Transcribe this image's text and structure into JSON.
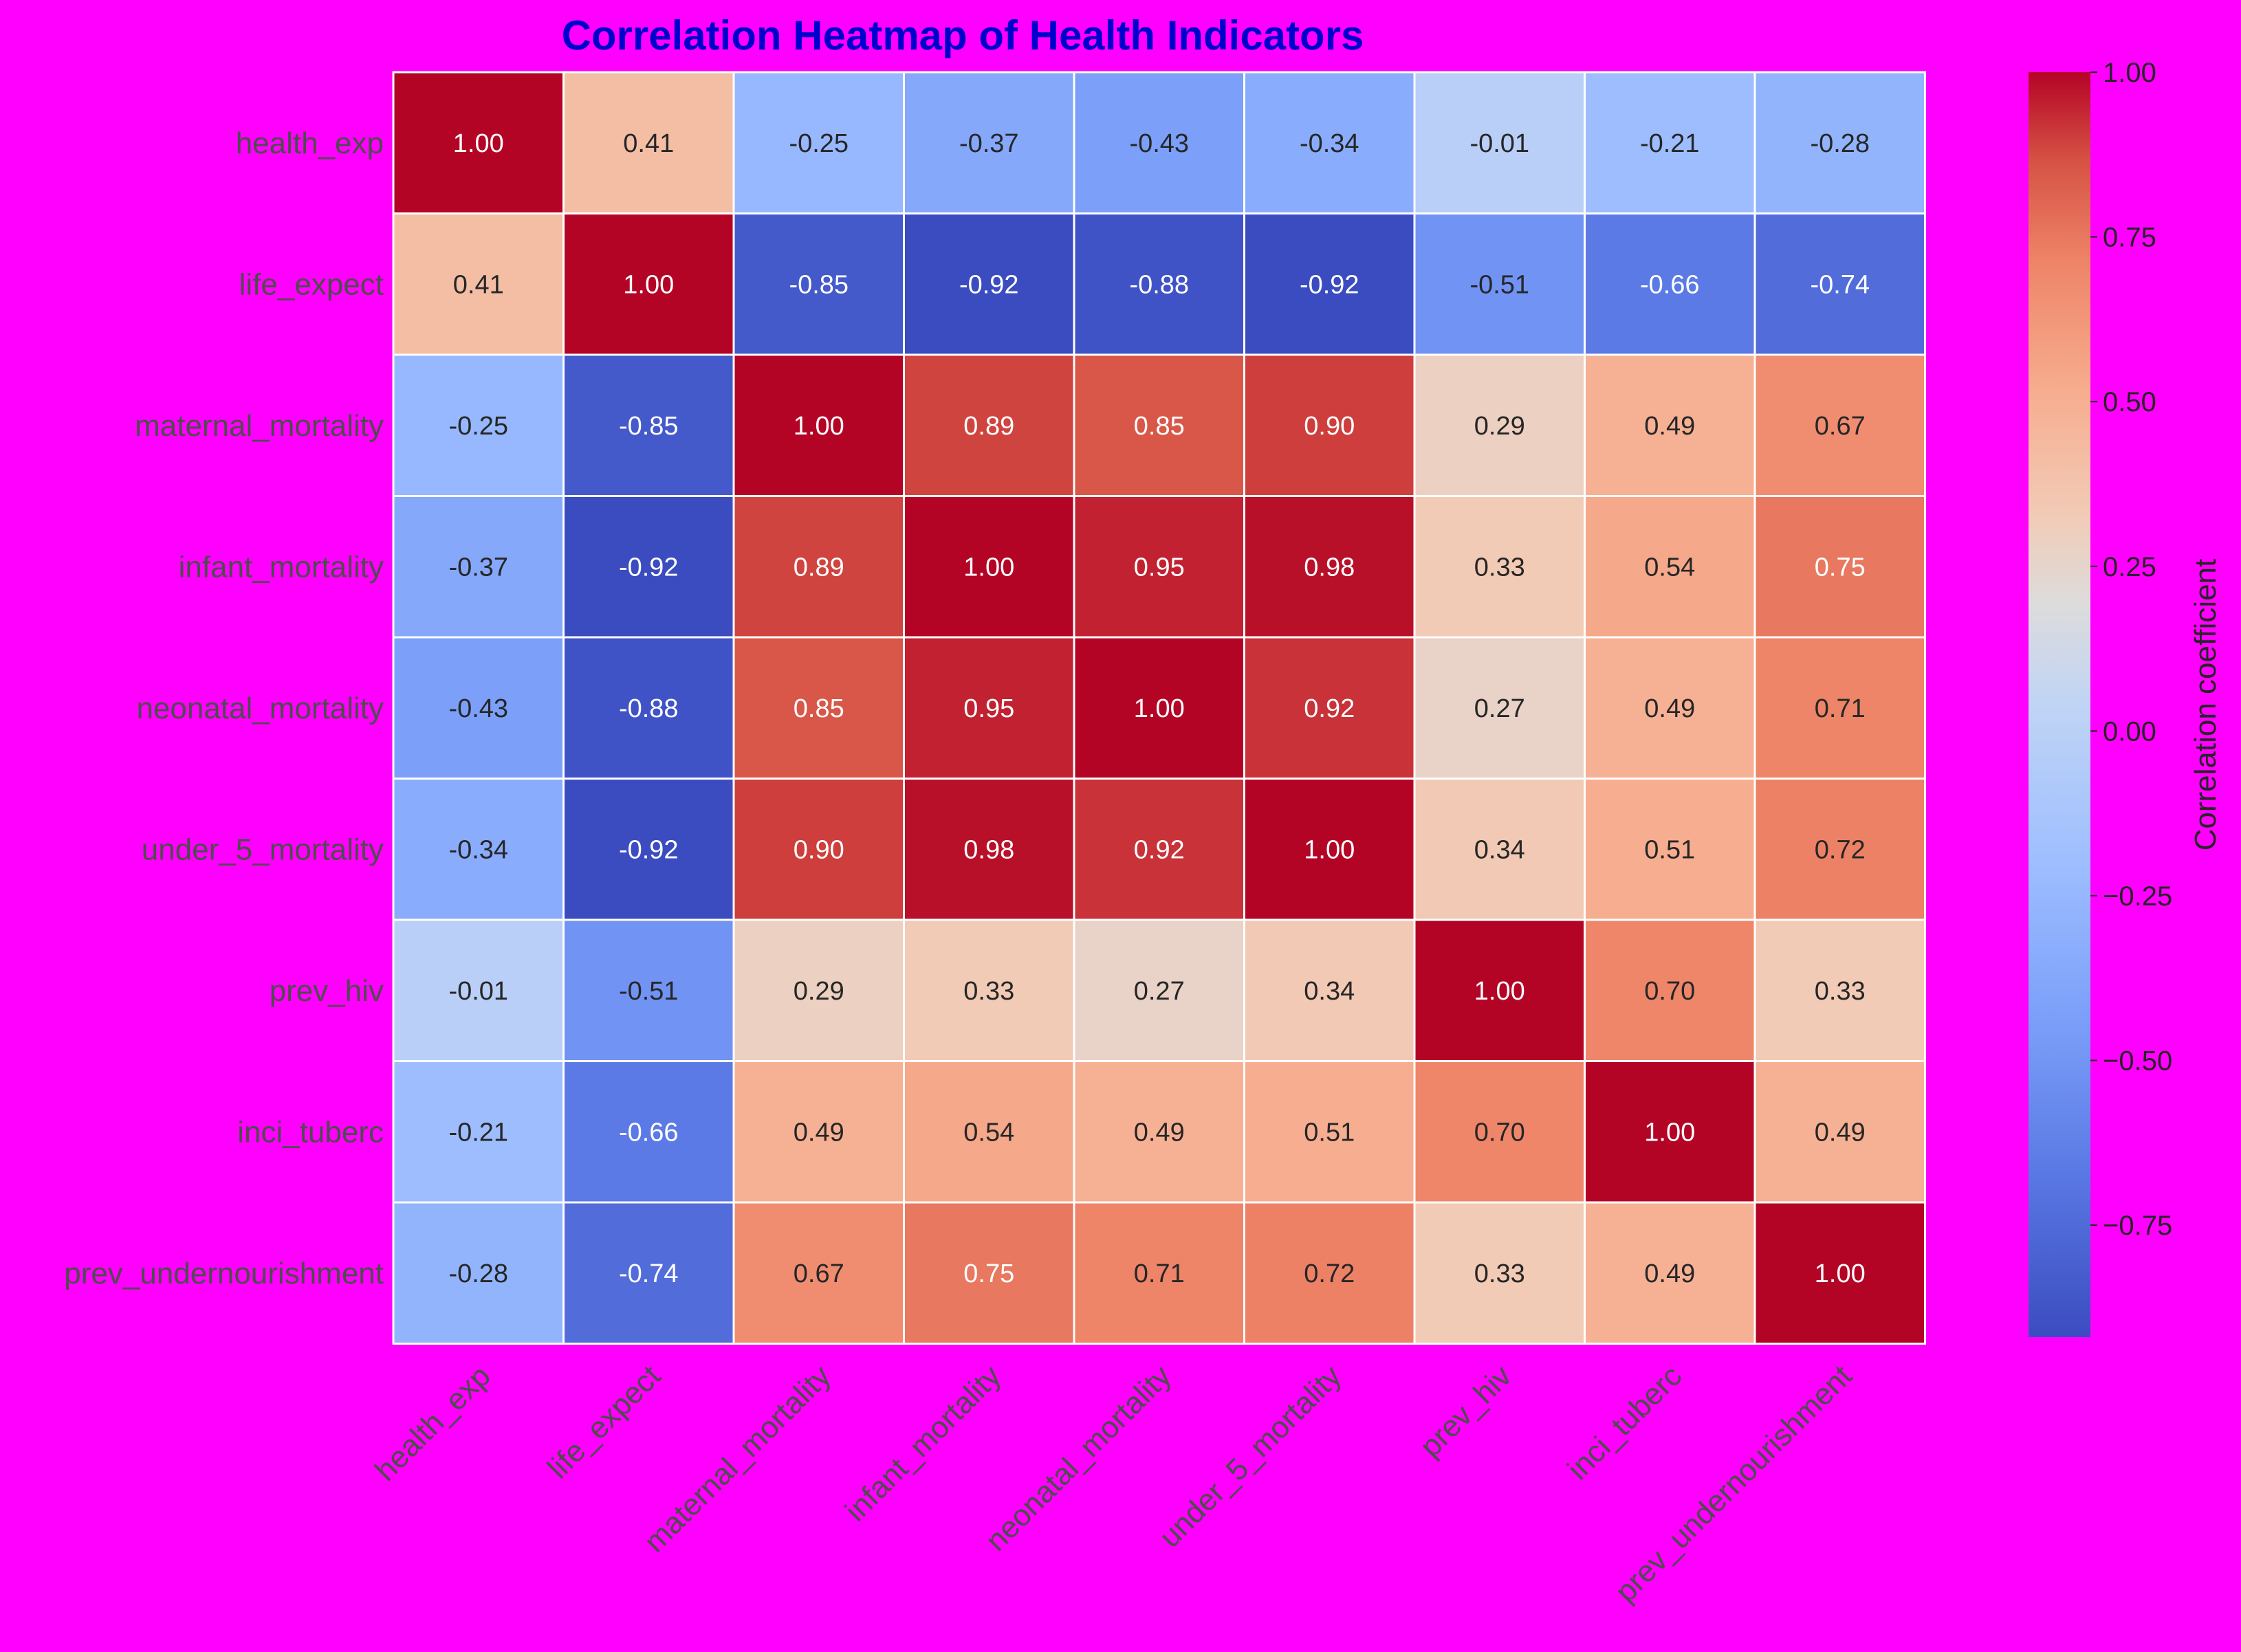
{
  "chart_data": {
    "type": "heatmap",
    "title": "Correlation Heatmap of Health Indicators",
    "title_color": "#0000cc",
    "background_color": "#ff00ff",
    "colormap": "coolwarm",
    "value_range": [
      -0.92,
      1.0
    ],
    "colorbar": {
      "label": "Correlation coefficient",
      "ticks": [
        "1.00",
        "0.75",
        "0.50",
        "0.25",
        "0.00",
        "−0.25",
        "−0.50",
        "−0.75"
      ],
      "tick_values": [
        1.0,
        0.75,
        0.5,
        0.25,
        0.0,
        -0.25,
        -0.5,
        -0.75
      ]
    },
    "row_labels": [
      "health_exp",
      "life_expect",
      "maternal_mortality",
      "infant_mortality",
      "neonatal_mortality",
      "under_5_mortality",
      "prev_hiv",
      "inci_tuberc",
      "prev_undernourishment"
    ],
    "col_labels": [
      "health_exp",
      "life_expect",
      "maternal_mortality",
      "infant_mortality",
      "neonatal_mortality",
      "under_5_mortality",
      "prev_hiv",
      "inci_tuberc",
      "prev_undernourishment"
    ],
    "values": [
      [
        1.0,
        0.41,
        -0.25,
        -0.37,
        -0.43,
        -0.34,
        -0.01,
        -0.21,
        -0.28
      ],
      [
        0.41,
        1.0,
        -0.85,
        -0.92,
        -0.88,
        -0.92,
        -0.51,
        -0.66,
        -0.74
      ],
      [
        -0.25,
        -0.85,
        1.0,
        0.89,
        0.85,
        0.9,
        0.29,
        0.49,
        0.67
      ],
      [
        -0.37,
        -0.92,
        0.89,
        1.0,
        0.95,
        0.98,
        0.33,
        0.54,
        0.75
      ],
      [
        -0.43,
        -0.88,
        0.85,
        0.95,
        1.0,
        0.92,
        0.27,
        0.49,
        0.71
      ],
      [
        -0.34,
        -0.92,
        0.9,
        0.98,
        0.92,
        1.0,
        0.34,
        0.51,
        0.72
      ],
      [
        -0.01,
        -0.51,
        0.29,
        0.33,
        0.27,
        0.34,
        1.0,
        0.7,
        0.33
      ],
      [
        -0.21,
        -0.66,
        0.49,
        0.54,
        0.49,
        0.51,
        0.7,
        1.0,
        0.49
      ],
      [
        -0.28,
        -0.74,
        0.67,
        0.75,
        0.71,
        0.72,
        0.33,
        0.49,
        1.0
      ]
    ]
  }
}
